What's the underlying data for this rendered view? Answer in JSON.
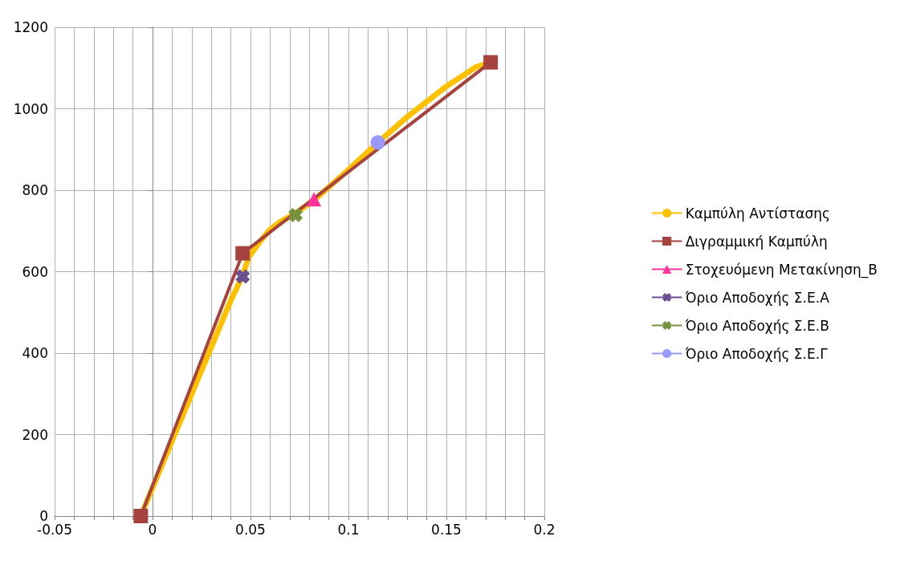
{
  "chart_data": {
    "type": "line",
    "xlim": [
      -0.05,
      0.2
    ],
    "xticks": [
      -0.05,
      {
        "value": -0.04,
        "label": null
      },
      {
        "value": -0.03,
        "label": null
      },
      {
        "value": -0.02,
        "label": null
      },
      {
        "value": -0.01,
        "label": null
      },
      0,
      {
        "value": 0.01,
        "label": null
      },
      {
        "value": 0.02,
        "label": null
      },
      {
        "value": 0.03,
        "label": null
      },
      {
        "value": 0.04,
        "label": null
      },
      0.05,
      {
        "value": 0.06,
        "label": null
      },
      {
        "value": 0.07,
        "label": null
      },
      {
        "value": 0.08,
        "label": null
      },
      {
        "value": 0.09,
        "label": null
      },
      0.1,
      {
        "value": 0.11,
        "label": null
      },
      {
        "value": 0.12,
        "label": null
      },
      {
        "value": 0.13,
        "label": null
      },
      {
        "value": 0.14,
        "label": null
      },
      0.15,
      {
        "value": 0.16,
        "label": null
      },
      {
        "value": 0.17,
        "label": null
      },
      {
        "value": 0.18,
        "label": null
      },
      {
        "value": 0.19,
        "label": null
      },
      0.2
    ],
    "ylim": [
      0,
      1200
    ],
    "yticks": [
      0,
      200,
      400,
      600,
      800,
      1000,
      1200
    ],
    "grid": true,
    "legend": "right",
    "series": [
      {
        "name": "Καμπύλη Αντίστασης",
        "color": "#ffc000",
        "marker": "none",
        "x": [
          -0.006,
          0.02,
          0.04,
          0.046,
          0.049,
          0.055,
          0.0595,
          0.065,
          0.0727,
          0.083,
          0.1,
          0.115,
          0.13,
          0.15,
          0.165,
          0.1726
        ],
        "values": [
          0,
          300,
          530,
          590,
          635,
          675,
          701,
          722,
          742,
          778,
          850,
          917,
          980,
          1055,
          1102,
          1114
        ]
      },
      {
        "name": "Διγραμμική Καμπύλη",
        "color": "#a5433f",
        "marker": "square",
        "x": [
          -0.006,
          0.046,
          0.1726
        ],
        "values": [
          0,
          645,
          1114
        ]
      },
      {
        "name": "Στοχευόμενη Μετακίνηση_Β",
        "color": "#ff3399",
        "marker": "triangle",
        "x": [
          0.0824
        ],
        "values": [
          778
        ]
      },
      {
        "name": "Όριο Αποδοχής Σ.Ε.Α",
        "color": "#6b4f8f",
        "marker": "cross",
        "x": [
          0.046
        ],
        "values": [
          588
        ]
      },
      {
        "name": "Όριο Αποδοχής Σ.Ε.Β",
        "color": "#76923c",
        "marker": "cross",
        "x": [
          0.073
        ],
        "values": [
          739
        ]
      },
      {
        "name": "Όριο Αποδοχής Σ.Ε.Γ",
        "color": "#9999ff",
        "marker": "circle",
        "x": [
          0.115
        ],
        "values": [
          917
        ]
      }
    ]
  }
}
